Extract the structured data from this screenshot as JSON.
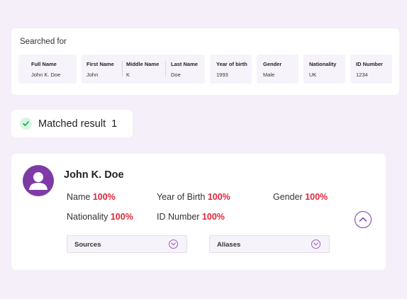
{
  "search": {
    "title": "Searched for",
    "fields": [
      {
        "label": "Full Name",
        "value": "John K. Doe"
      },
      {
        "label": "First Name",
        "value": "John"
      },
      {
        "label": "Middle Name",
        "value": "K"
      },
      {
        "label": "Last Name",
        "value": "Doe"
      },
      {
        "label": "Year of birth",
        "value": "1993"
      },
      {
        "label": "Gender",
        "value": "Male"
      },
      {
        "label": "Nationality",
        "value": "UK"
      },
      {
        "label": "ID Number",
        "value": "1234"
      }
    ]
  },
  "matched": {
    "label": "Matched result",
    "count": "1"
  },
  "result": {
    "name": "John K. Doe",
    "metrics": [
      {
        "label": "Name",
        "value": "100%"
      },
      {
        "label": "Year of Birth",
        "value": "100%"
      },
      {
        "label": "Gender",
        "value": "100%"
      },
      {
        "label": "Nationality",
        "value": "100%"
      },
      {
        "label": "ID Number",
        "value": "100%"
      }
    ],
    "dropdowns": {
      "sources": "Sources",
      "aliases": "Aliases"
    }
  },
  "colors": {
    "accent": "#7e3aa6",
    "match_pct": "#e0263a",
    "background": "#f4eff8",
    "success": "#16a34a"
  },
  "icons": {
    "check": "check-icon",
    "avatar": "user-avatar-icon",
    "collapse": "chevron-up-icon",
    "dropdown": "chevron-down-icon"
  }
}
